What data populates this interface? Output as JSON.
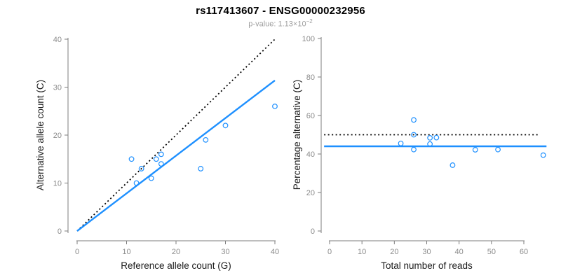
{
  "header": {
    "title": "rs117413607 - ENSG00000232956",
    "pvalue_base": "p-value: 1.13×10",
    "pvalue_exponent": "−2"
  },
  "colors": {
    "accent_blue": "#1E90FF",
    "dashed_black": "#000000",
    "axis": "#7d7d7d",
    "tick_label": "#8c8c8c",
    "axis_title": "#1a1a1a",
    "subtitle_gray": "#9e9e9e"
  },
  "chart_data": [
    {
      "type": "scatter",
      "xlabel": "Reference allele count (G)",
      "ylabel": "Alternative allele count (C)",
      "xlim": [
        0,
        40
      ],
      "ylim": [
        0,
        40
      ],
      "xticks": [
        0,
        10,
        20,
        30,
        40
      ],
      "yticks": [
        0,
        10,
        20,
        30,
        40
      ],
      "grid": false,
      "legend": false,
      "marker": "open-circle",
      "point_color": "#1E90FF",
      "points": [
        [
          11,
          15
        ],
        [
          12,
          10
        ],
        [
          13,
          13
        ],
        [
          15,
          11
        ],
        [
          16,
          15
        ],
        [
          17,
          14
        ],
        [
          17,
          16
        ],
        [
          25,
          13
        ],
        [
          26,
          19
        ],
        [
          30,
          22
        ],
        [
          40,
          26
        ]
      ],
      "lines": [
        {
          "name": "identity",
          "style": "dashed",
          "color": "#000000",
          "x1": 0,
          "y1": 0,
          "x2": 40,
          "y2": 40
        },
        {
          "name": "regression",
          "style": "solid",
          "color": "#1E90FF",
          "x1": 0,
          "y1": 0,
          "x2": 40,
          "y2": 31.4
        }
      ]
    },
    {
      "type": "scatter",
      "xlabel": "Total number of reads",
      "ylabel": "Percentage alternative (C)",
      "xlim": [
        0,
        67
      ],
      "ylim": [
        0,
        100
      ],
      "xticks": [
        0,
        10,
        20,
        30,
        40,
        50,
        60
      ],
      "yticks": [
        0,
        20,
        40,
        60,
        80,
        100
      ],
      "grid": false,
      "legend": false,
      "marker": "open-circle",
      "point_color": "#1E90FF",
      "points": [
        [
          22,
          45.5
        ],
        [
          26,
          57.7
        ],
        [
          26,
          50
        ],
        [
          26,
          42.3
        ],
        [
          31,
          48.4
        ],
        [
          31,
          45.2
        ],
        [
          33,
          48.5
        ],
        [
          38,
          34.2
        ],
        [
          45,
          42.2
        ],
        [
          52,
          42.3
        ],
        [
          66,
          39.4
        ]
      ],
      "lines": [
        {
          "name": "expected-50pct",
          "style": "dashed",
          "color": "#000000",
          "x1": -1.7,
          "y1": 50,
          "x2": 65,
          "y2": 50
        },
        {
          "name": "mean-percentage",
          "style": "solid",
          "color": "#1E90FF",
          "x1": -1.7,
          "y1": 44,
          "x2": 67,
          "y2": 44
        }
      ]
    }
  ]
}
